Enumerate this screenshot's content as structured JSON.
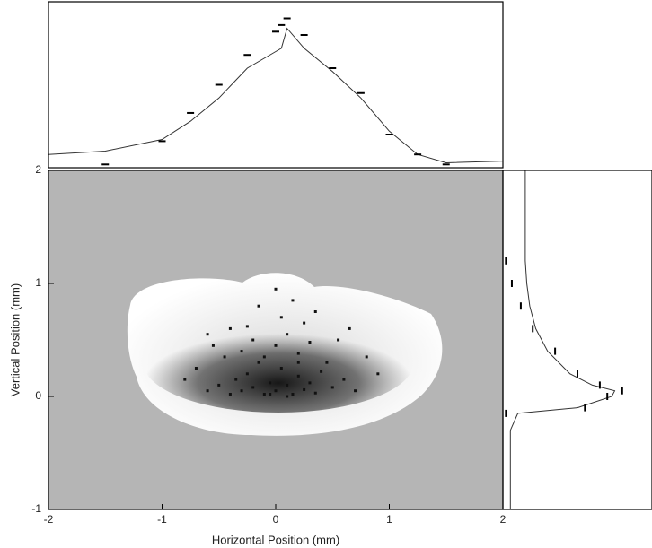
{
  "chart_data": [
    {
      "type": "scatter",
      "x_label": "Horizontal Position (mm)",
      "y_label": "Vertical Position (mm)",
      "xlim": [
        -2,
        2
      ],
      "ylim": [
        -1,
        2
      ],
      "xticks": [
        -2,
        -1,
        0,
        1,
        2
      ],
      "yticks": [
        -1,
        0,
        1,
        2
      ],
      "color": "#111111",
      "x": [
        -0.6,
        -0.5,
        -0.4,
        -0.35,
        -0.3,
        -0.25,
        -0.2,
        -0.15,
        -0.1,
        -0.05,
        0,
        0.05,
        0.1,
        0.15,
        0.2,
        0.25,
        0.3,
        0.35,
        0.4,
        0.5,
        0.6,
        0.7,
        -0.45,
        -0.3,
        -0.2,
        -0.1,
        0,
        0.1,
        0.2,
        0.3,
        0.45,
        -0.7,
        -0.55,
        -0.25,
        0.05,
        0.25,
        0.55,
        0.8,
        -0.15,
        0.15,
        -0.4,
        0.35,
        0,
        -0.6,
        0.65,
        -0.05,
        0.1,
        -0.8,
        0.9,
        0.2
      ],
      "y": [
        0.05,
        0.1,
        0.02,
        0.15,
        0.05,
        0.2,
        0.08,
        0.3,
        0.02,
        0.12,
        0.05,
        0.25,
        0.1,
        0.02,
        0.18,
        0.06,
        0.12,
        0.03,
        0.22,
        0.08,
        0.15,
        0.05,
        0.35,
        0.4,
        0.5,
        0.35,
        0.45,
        0.55,
        0.38,
        0.48,
        0.3,
        0.25,
        0.45,
        0.62,
        0.7,
        0.65,
        0.5,
        0.35,
        0.8,
        0.85,
        0.6,
        0.75,
        0.95,
        0.55,
        0.6,
        0.02,
        0.0,
        0.15,
        0.2,
        0.3
      ]
    },
    {
      "type": "line",
      "xlim": [
        -2,
        2
      ],
      "ylim": [
        0,
        1
      ],
      "x": [
        -2,
        -1.5,
        -1,
        -0.75,
        -0.5,
        -0.25,
        0,
        0.05,
        0.1,
        0.25,
        0.5,
        0.75,
        1,
        1.25,
        1.5,
        2
      ],
      "series": [
        {
          "color": "#333333",
          "values": [
            0.08,
            0.1,
            0.17,
            0.28,
            0.42,
            0.6,
            0.7,
            0.72,
            0.84,
            0.72,
            0.58,
            0.42,
            0.22,
            0.08,
            0.03,
            0.04
          ]
        },
        {
          "color": "#000000",
          "marker": "dash",
          "values": [
            null,
            0.02,
            0.16,
            0.33,
            0.5,
            0.68,
            0.82,
            0.86,
            0.9,
            0.8,
            0.6,
            0.45,
            0.2,
            0.08,
            0.02,
            null
          ]
        }
      ]
    },
    {
      "type": "line",
      "orientation": "vertical",
      "xlim": [
        0,
        1
      ],
      "ylim": [
        -1,
        2
      ],
      "y": [
        2,
        1.2,
        1.0,
        0.8,
        0.6,
        0.4,
        0.2,
        0.1,
        0.05,
        0,
        -0.1,
        -0.15,
        -0.3,
        -0.6,
        -1
      ],
      "series": [
        {
          "color": "#333333",
          "values": [
            0.15,
            0.15,
            0.16,
            0.18,
            0.22,
            0.3,
            0.45,
            0.6,
            0.75,
            0.73,
            0.5,
            0.1,
            0.05,
            0.05,
            0.05
          ]
        },
        {
          "color": "#000000",
          "marker": "dash",
          "values": [
            null,
            0.02,
            0.06,
            0.12,
            0.2,
            0.35,
            0.5,
            0.65,
            0.8,
            0.7,
            0.55,
            0.02,
            null,
            null,
            null
          ]
        }
      ]
    }
  ]
}
